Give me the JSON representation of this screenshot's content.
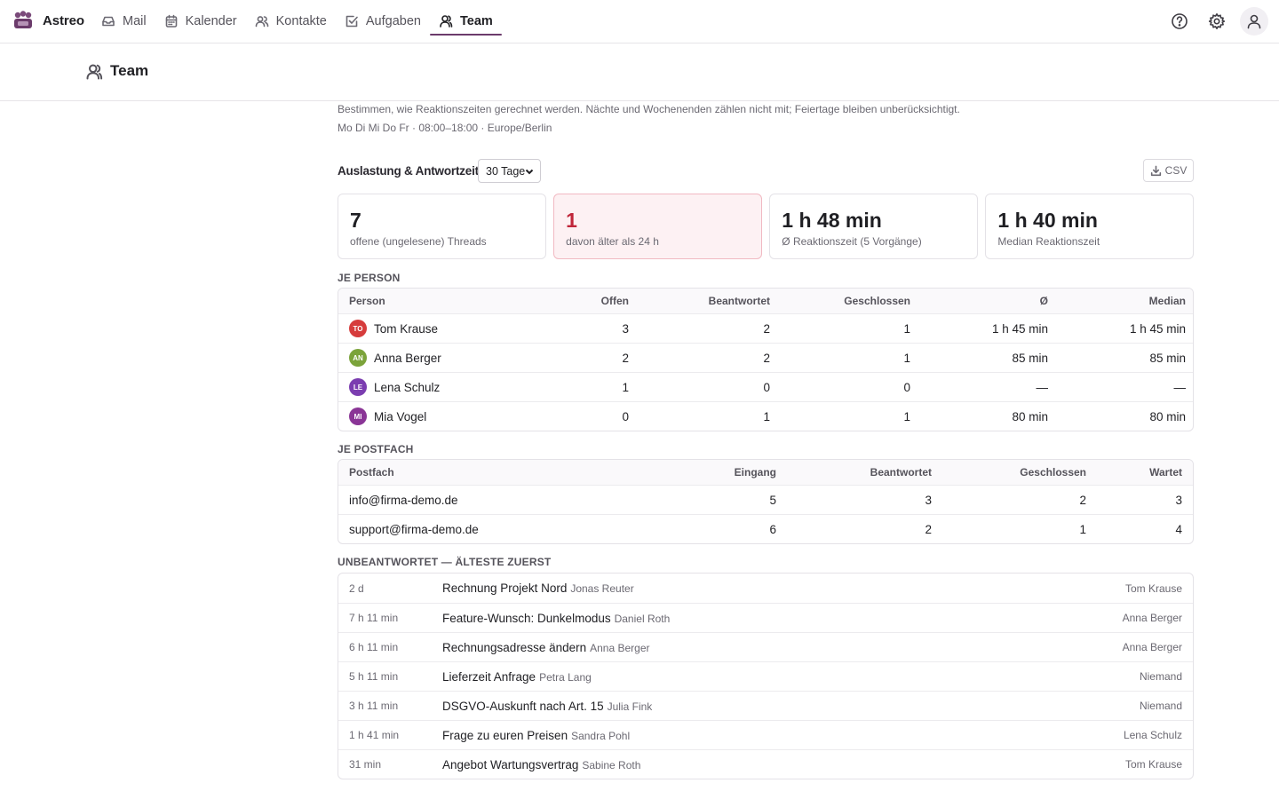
{
  "app": {
    "name": "Astreo"
  },
  "nav": [
    {
      "label": "Mail",
      "icon": "mail-icon",
      "active": false
    },
    {
      "label": "Kalender",
      "icon": "calendar-icon",
      "active": false
    },
    {
      "label": "Kontakte",
      "icon": "contacts-icon",
      "active": false
    },
    {
      "label": "Aufgaben",
      "icon": "tasks-icon",
      "active": false
    },
    {
      "label": "Team",
      "icon": "team-icon",
      "active": true
    }
  ],
  "page": {
    "title": "Team"
  },
  "settings": {
    "description": "Bestimmen, wie Reaktionszeiten gerechnet werden. Nächte und Wochenenden zählen nicht mit; Feiertage bleiben unberücksichtigt.",
    "hours": "Mo Di Mi Do Fr · 08:00–18:00 · Europe/Berlin"
  },
  "stats": {
    "label": "Auslastung & Antwortzeit",
    "period": "30 Tage",
    "csv_label": "CSV"
  },
  "kpis": [
    {
      "value": "7",
      "label": "offene (ungelesene) Threads"
    },
    {
      "value": "1",
      "label": "davon älter als 24 h"
    },
    {
      "value": "1 h 48 min",
      "label": "Ø Reaktionszeit (5 Vorgänge)"
    },
    {
      "value": "1 h 40 min",
      "label": "Median Reaktionszeit"
    }
  ],
  "per_person": {
    "title": "JE PERSON",
    "headers": {
      "person": "Person",
      "open": "Offen",
      "answered": "Beantwortet",
      "closed": "Geschlossen",
      "avg": "Ø",
      "median": "Median"
    },
    "rows": [
      {
        "initials": "TO",
        "color": "#d63c3c",
        "name": "Tom Krause",
        "open": "3",
        "answered": "2",
        "closed": "1",
        "avg": "1 h 45 min",
        "median": "1 h 45 min"
      },
      {
        "initials": "AN",
        "color": "#7ba33a",
        "name": "Anna Berger",
        "open": "2",
        "answered": "2",
        "closed": "1",
        "avg": "85 min",
        "median": "85 min"
      },
      {
        "initials": "LE",
        "color": "#7b3db0",
        "name": "Lena Schulz",
        "open": "1",
        "answered": "0",
        "closed": "0",
        "avg": "—",
        "median": "—"
      },
      {
        "initials": "MI",
        "color": "#8a3596",
        "name": "Mia Vogel",
        "open": "0",
        "answered": "1",
        "closed": "1",
        "avg": "80 min",
        "median": "80 min"
      }
    ]
  },
  "per_mailbox": {
    "title": "JE POSTFACH",
    "headers": {
      "mailbox": "Postfach",
      "inbox": "Eingang",
      "answered": "Beantwortet",
      "closed": "Geschlossen",
      "waiting": "Wartet"
    },
    "rows": [
      {
        "mailbox": "info@firma-demo.de",
        "inbox": "5",
        "answered": "3",
        "closed": "2",
        "waiting": "3"
      },
      {
        "mailbox": "support@firma-demo.de",
        "inbox": "6",
        "answered": "2",
        "closed": "1",
        "waiting": "4"
      }
    ]
  },
  "unanswered": {
    "title": "UNBEANTWORTET — ÄLTESTE ZUERST",
    "rows": [
      {
        "age": "2 d",
        "subject": "Rechnung Projekt Nord",
        "from": "Jonas Reuter",
        "assignee": "Tom Krause"
      },
      {
        "age": "7 h 11 min",
        "subject": "Feature-Wunsch: Dunkelmodus",
        "from": "Daniel Roth",
        "assignee": "Anna Berger"
      },
      {
        "age": "6 h 11 min",
        "subject": "Rechnungsadresse ändern",
        "from": "Anna Berger",
        "assignee": "Anna Berger"
      },
      {
        "age": "5 h 11 min",
        "subject": "Lieferzeit Anfrage",
        "from": "Petra Lang",
        "assignee": "Niemand"
      },
      {
        "age": "3 h 11 min",
        "subject": "DSGVO-Auskunft nach Art. 15",
        "from": "Julia Fink",
        "assignee": "Niemand"
      },
      {
        "age": "1 h 41 min",
        "subject": "Frage zu euren Preisen",
        "from": "Sandra Pohl",
        "assignee": "Lena Schulz"
      },
      {
        "age": "31 min",
        "subject": "Angebot Wartungsvertrag",
        "from": "Sabine Roth",
        "assignee": "Tom Krause"
      }
    ]
  }
}
